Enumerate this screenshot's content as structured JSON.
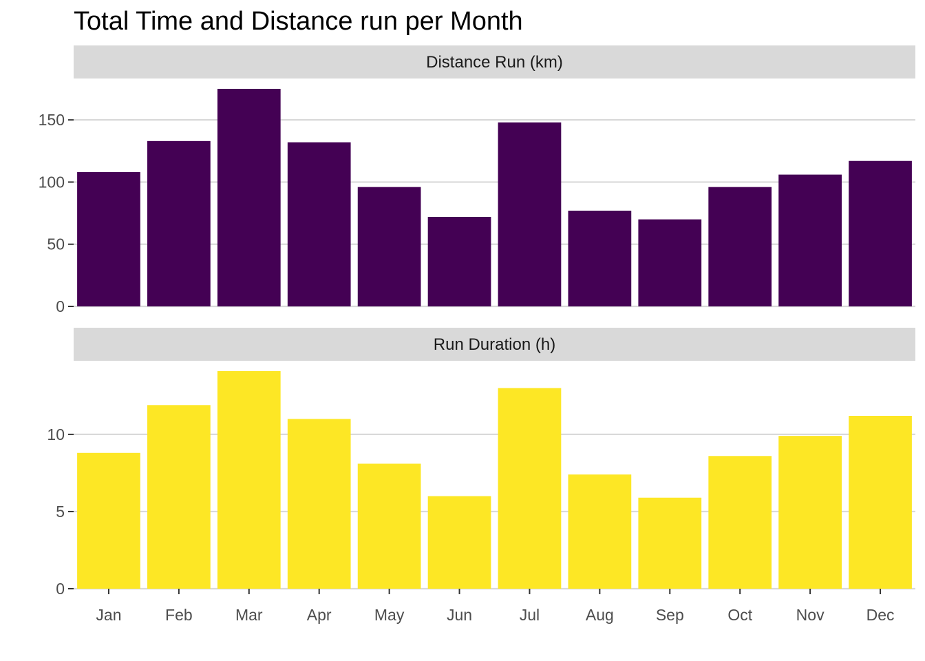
{
  "chart_data": {
    "type": "bar",
    "title": "Total Time and Distance run per Month",
    "categories": [
      "Jan",
      "Feb",
      "Mar",
      "Apr",
      "May",
      "Jun",
      "Jul",
      "Aug",
      "Sep",
      "Oct",
      "Nov",
      "Dec"
    ],
    "panels": [
      {
        "name": "Distance Run (km)",
        "color": "#440154",
        "yticks": [
          0,
          50,
          100,
          150
        ],
        "ylim": [
          0,
          175
        ],
        "values": [
          108,
          133,
          175,
          132,
          96,
          72,
          148,
          77,
          70,
          96,
          106,
          117
        ]
      },
      {
        "name": "Run Duration (h)",
        "color": "#FDE725",
        "yticks": [
          0,
          5,
          10
        ],
        "ylim": [
          0,
          14.1
        ],
        "values": [
          8.8,
          11.9,
          14.1,
          11.0,
          8.1,
          6.0,
          13.0,
          7.4,
          5.9,
          8.6,
          9.9,
          11.2
        ]
      }
    ],
    "grid": true,
    "strip_fill": "#D9D9D9",
    "grid_color": "#D9D9D9"
  }
}
